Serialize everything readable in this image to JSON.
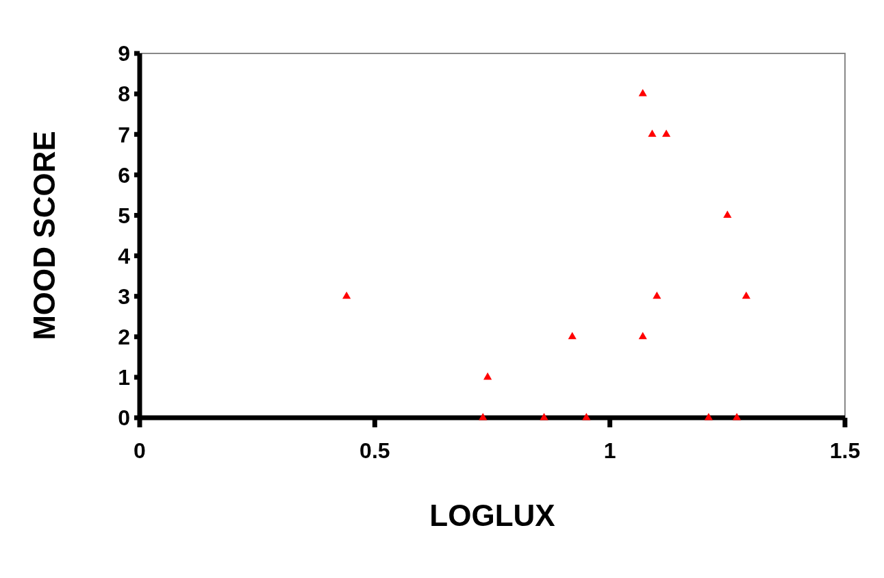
{
  "chart_data": {
    "type": "scatter",
    "xlabel": "LOGLUX",
    "ylabel": "MOOD SCORE",
    "x": [
      0.44,
      0.74,
      0.73,
      0.86,
      0.95,
      0.92,
      1.07,
      1.07,
      1.09,
      1.12,
      1.1,
      1.25,
      1.21,
      1.27,
      1.29
    ],
    "values": [
      3,
      1,
      0,
      0,
      0,
      2,
      2,
      8,
      7,
      7,
      3,
      5,
      0,
      0,
      3
    ],
    "color": "#ff0000",
    "marker": "triangle",
    "grid": false,
    "xlim": [
      0,
      1.5
    ],
    "xticks": [
      0,
      0.5,
      1,
      1.5
    ],
    "ylim": [
      0,
      9
    ],
    "yticks": [
      0,
      1,
      2,
      3,
      4,
      5,
      6,
      7,
      8,
      9
    ]
  }
}
